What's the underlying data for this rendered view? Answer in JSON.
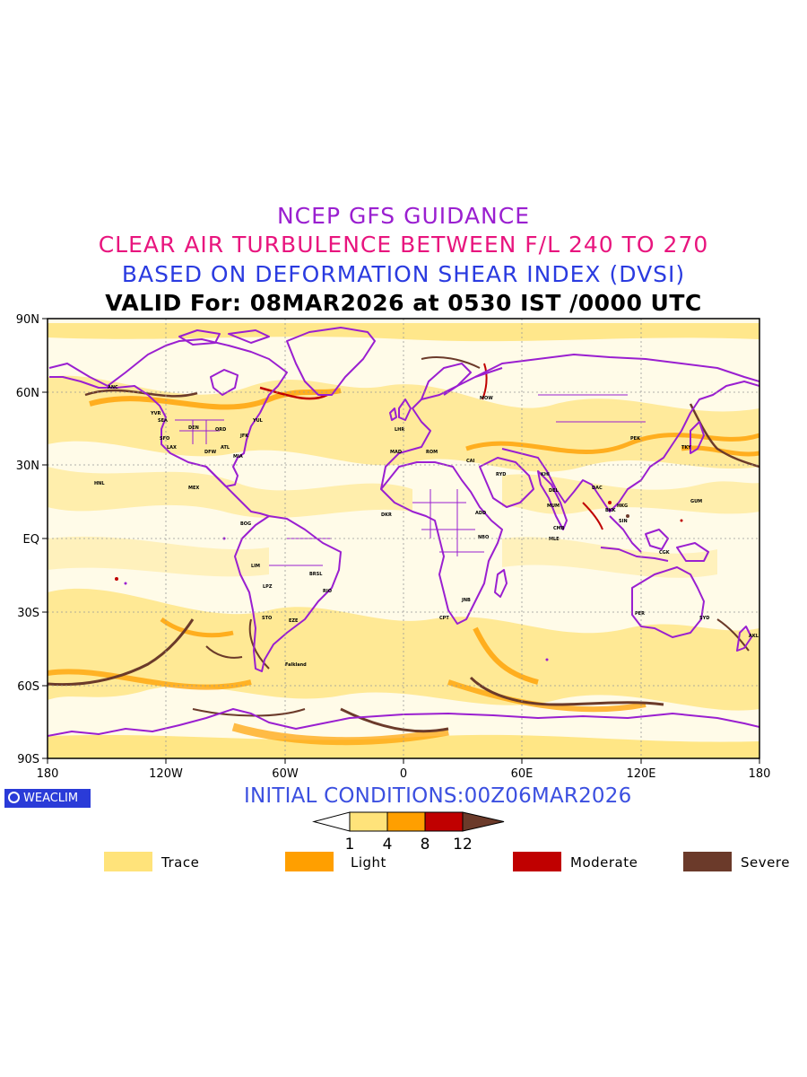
{
  "titles": {
    "line1": "NCEP GFS GUIDANCE",
    "line2": "CLEAR AIR TURBULENCE BETWEEN F/L 240 TO 270",
    "line3": "BASED ON DEFORMATION SHEAR INDEX (DVSI)",
    "line4": "VALID For: 08MAR2026 at 0530 IST /0000 UTC"
  },
  "axes": {
    "lat_labels": [
      "90N",
      "60N",
      "30N",
      "EQ",
      "30S",
      "60S",
      "90S"
    ],
    "lon_labels": [
      "180",
      "120W",
      "60W",
      "0",
      "60E",
      "120E",
      "180"
    ]
  },
  "logo": {
    "text": "WEACLIM"
  },
  "initial_conditions": "INITIAL CONDITIONS:00Z06MAR2026",
  "colorbar": {
    "ticks": [
      "1",
      "4",
      "8",
      "12"
    ],
    "colors": [
      "#ffe37a",
      "#ff9f00",
      "#c00000",
      "#6b3a2a"
    ]
  },
  "legend": [
    {
      "label": "Trace",
      "color": "#ffe37a"
    },
    {
      "label": "Light",
      "color": "#ff9f00"
    },
    {
      "label": "Moderate",
      "color": "#c00000"
    },
    {
      "label": "Severe",
      "color": "#6b3a2a"
    }
  ],
  "map": {
    "coastline_color": "#9a1fd0",
    "stations": [
      "ANC",
      "YVR",
      "SEA",
      "SFO",
      "LAX",
      "DEN",
      "DFW",
      "ORD",
      "ATL",
      "MIA",
      "JFK",
      "YUL",
      "MEX",
      "HNL",
      "BOG",
      "LIM",
      "LPZ",
      "BRSL",
      "RIO",
      "STO",
      "EZE",
      "Falkland",
      "LHR",
      "MAD",
      "ROM",
      "CAI",
      "DKR",
      "ADD",
      "NBO",
      "CPT",
      "JNB",
      "MOW",
      "RYD",
      "KHI",
      "DEL",
      "MUM",
      "CMB",
      "MLE",
      "DAC",
      "BKK",
      "HKG",
      "PEK",
      "TKY",
      "SIN",
      "CGK",
      "PER",
      "SYD",
      "AKL",
      "GUM"
    ]
  }
}
